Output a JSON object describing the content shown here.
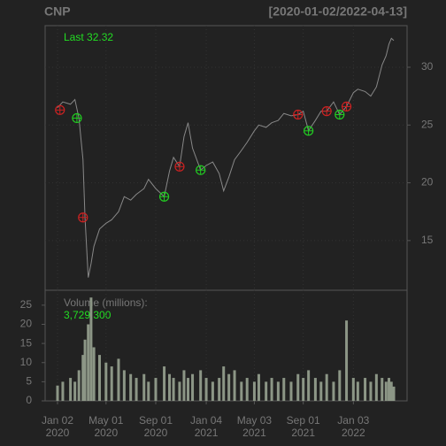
{
  "title": "CNP",
  "range": "[2020-01-02/2022-04-13]",
  "chart_data": [
    {
      "type": "line",
      "annotation": "Last 32.32",
      "xlim": [
        "2020-01-02",
        "2022-04-13"
      ],
      "xticks": [
        {
          "value": "2020-01-02",
          "label": [
            "Jan 02",
            "2020"
          ]
        },
        {
          "value": "2020-05-01",
          "label": [
            "May 01",
            "2020"
          ]
        },
        {
          "value": "2020-09-01",
          "label": [
            "Sep 01",
            "2020"
          ]
        },
        {
          "value": "2021-01-04",
          "label": [
            "Jan 04",
            "2021"
          ]
        },
        {
          "value": "2021-05-03",
          "label": [
            "May 03",
            "2021"
          ]
        },
        {
          "value": "2021-09-01",
          "label": [
            "Sep 01",
            "2021"
          ]
        },
        {
          "value": "2022-01-03",
          "label": [
            "Jan 03",
            "2022"
          ]
        }
      ],
      "ylim": [
        10.7,
        33.6
      ],
      "yticks": [
        15,
        20,
        25,
        30
      ],
      "grid": true,
      "x": [
        "2020-01-02",
        "2020-01-15",
        "2020-02-03",
        "2020-02-14",
        "2020-02-24",
        "2020-03-05",
        "2020-03-10",
        "2020-03-18",
        "2020-03-25",
        "2020-04-01",
        "2020-04-15",
        "2020-05-01",
        "2020-05-15",
        "2020-06-01",
        "2020-06-15",
        "2020-07-01",
        "2020-07-15",
        "2020-08-03",
        "2020-08-14",
        "2020-09-01",
        "2020-09-22",
        "2020-10-05",
        "2020-10-15",
        "2020-10-30",
        "2020-11-10",
        "2020-11-20",
        "2020-12-01",
        "2020-12-21",
        "2021-01-04",
        "2021-01-20",
        "2021-02-05",
        "2021-02-16",
        "2021-03-01",
        "2021-03-15",
        "2021-04-01",
        "2021-04-15",
        "2021-05-03",
        "2021-05-14",
        "2021-06-01",
        "2021-06-15",
        "2021-07-01",
        "2021-07-15",
        "2021-08-02",
        "2021-08-19",
        "2021-09-01",
        "2021-09-14",
        "2021-10-01",
        "2021-10-15",
        "2021-10-29",
        "2021-11-15",
        "2021-11-30",
        "2021-12-17",
        "2022-01-03",
        "2022-01-14",
        "2022-02-01",
        "2022-02-15",
        "2022-03-01",
        "2022-03-15",
        "2022-03-25",
        "2022-04-01",
        "2022-04-07",
        "2022-04-13"
      ],
      "series": [
        {
          "color": "#888888",
          "values": [
            26.5,
            27.0,
            26.8,
            27.2,
            25.6,
            22.0,
            17.0,
            11.8,
            13.0,
            14.5,
            16.0,
            16.5,
            16.8,
            17.5,
            18.8,
            18.5,
            19.0,
            19.5,
            20.3,
            19.5,
            18.8,
            21.0,
            22.2,
            21.4,
            24.0,
            25.2,
            23.0,
            21.1,
            21.5,
            21.8,
            20.8,
            19.3,
            20.5,
            22.0,
            22.8,
            23.5,
            24.5,
            25.0,
            24.8,
            25.2,
            25.4,
            26.0,
            25.8,
            25.9,
            26.2,
            24.5,
            25.4,
            26.2,
            26.2,
            27.0,
            25.9,
            26.6,
            27.8,
            28.1,
            27.9,
            27.5,
            28.3,
            30.2,
            31.0,
            32.0,
            32.5,
            32.32
          ]
        }
      ],
      "signals": [
        {
          "color": "#cc2222",
          "x": [
            "2020-01-08",
            "2020-03-05",
            "2020-10-30",
            "2021-08-19",
            "2021-10-29",
            "2021-12-17"
          ],
          "values": [
            26.3,
            17.0,
            21.4,
            25.9,
            26.2,
            26.6
          ]
        },
        {
          "color": "#22cc22",
          "x": [
            "2020-02-19",
            "2020-09-22",
            "2020-12-21",
            "2021-09-14",
            "2021-11-30"
          ],
          "values": [
            25.6,
            18.8,
            21.1,
            24.5,
            25.9
          ]
        }
      ]
    },
    {
      "type": "bar",
      "title": "Volume (millions):",
      "annotation": "3,729,300",
      "color": "#8c9686",
      "ylim": [
        0,
        28.9
      ],
      "yticks": [
        0,
        5,
        10,
        15,
        20,
        25
      ],
      "x": [
        "2020-01-02",
        "2020-01-15",
        "2020-02-03",
        "2020-02-14",
        "2020-02-24",
        "2020-03-05",
        "2020-03-10",
        "2020-03-18",
        "2020-03-25",
        "2020-04-01",
        "2020-04-15",
        "2020-05-01",
        "2020-05-15",
        "2020-06-01",
        "2020-06-15",
        "2020-07-01",
        "2020-07-15",
        "2020-08-03",
        "2020-08-14",
        "2020-09-01",
        "2020-09-22",
        "2020-10-05",
        "2020-10-15",
        "2020-10-30",
        "2020-11-10",
        "2020-11-20",
        "2020-12-01",
        "2020-12-21",
        "2021-01-04",
        "2021-01-20",
        "2021-02-05",
        "2021-02-16",
        "2021-03-01",
        "2021-03-15",
        "2021-04-01",
        "2021-04-15",
        "2021-05-03",
        "2021-05-14",
        "2021-06-01",
        "2021-06-15",
        "2021-07-01",
        "2021-07-15",
        "2021-08-02",
        "2021-08-19",
        "2021-09-01",
        "2021-09-14",
        "2021-10-01",
        "2021-10-15",
        "2021-10-29",
        "2021-11-15",
        "2021-11-30",
        "2021-12-17",
        "2022-01-03",
        "2022-01-14",
        "2022-02-01",
        "2022-02-15",
        "2022-03-01",
        "2022-03-15",
        "2022-03-25",
        "2022-04-01",
        "2022-04-07",
        "2022-04-13"
      ],
      "values": [
        4,
        5,
        6,
        5,
        8,
        12,
        16,
        20,
        27,
        14,
        12,
        10,
        9,
        11,
        8,
        7,
        6,
        7,
        5,
        6,
        9,
        7,
        6,
        5,
        8,
        6,
        7,
        8,
        6,
        5,
        6,
        9,
        7,
        8,
        5,
        6,
        5,
        7,
        5,
        6,
        5,
        6,
        5,
        7,
        6,
        8,
        6,
        5,
        7,
        5,
        8,
        21,
        6,
        5,
        6,
        5,
        7,
        6,
        5,
        6,
        5,
        3.7293
      ]
    }
  ]
}
